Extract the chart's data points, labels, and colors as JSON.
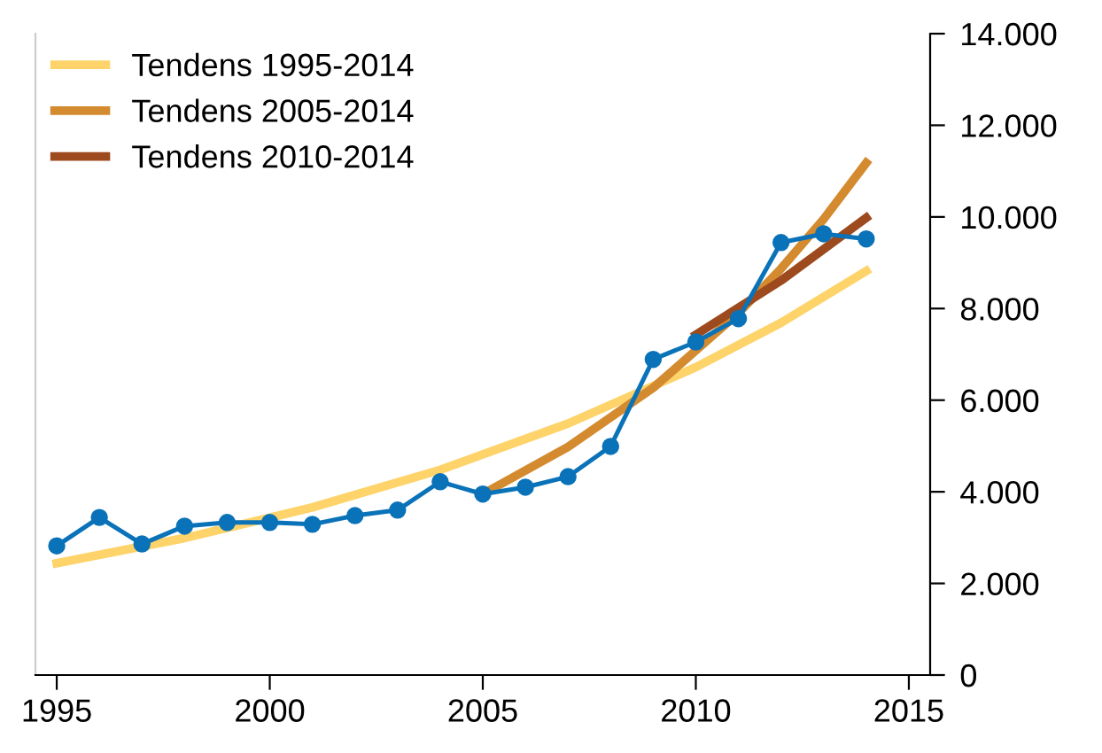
{
  "chart_data": {
    "type": "line",
    "xlim": [
      1994.5,
      2015.5
    ],
    "xticks": [
      1995,
      2000,
      2005,
      2010,
      2015
    ],
    "ylim": [
      0,
      14000
    ],
    "yticks": [
      {
        "value": 0,
        "label": "0"
      },
      {
        "value": 2000,
        "label": "2.000"
      },
      {
        "value": 4000,
        "label": "4.000"
      },
      {
        "value": 6000,
        "label": "6.000"
      },
      {
        "value": 8000,
        "label": "8.000"
      },
      {
        "value": 10000,
        "label": "10.000"
      },
      {
        "value": 12000,
        "label": "12.000"
      },
      {
        "value": 14000,
        "label": "14.000"
      }
    ],
    "legend": "top left",
    "grid": false,
    "series": [
      {
        "name": "Tendens 1995-2014",
        "color": "#fdd36a",
        "x": [
          1995,
          1998,
          2001,
          2004,
          2007,
          2010,
          2012,
          2014
        ],
        "values": [
          2440,
          2990,
          3660,
          4480,
          5490,
          6720,
          7690,
          8820
        ]
      },
      {
        "name": "Tendens 2005-2014",
        "color": "#d48a2e",
        "x": [
          2005,
          2007,
          2009,
          2011,
          2012,
          2013,
          2014
        ],
        "values": [
          3950,
          4980,
          6270,
          7900,
          8870,
          9950,
          11180
        ]
      },
      {
        "name": "Tendens 2010-2014",
        "color": "#9c4a1e",
        "x": [
          2010,
          2012,
          2014
        ],
        "values": [
          7430,
          8610,
          9980
        ]
      },
      {
        "color": "#0a72b8",
        "marker": "circle",
        "x": [
          1995,
          1996,
          1997,
          1998,
          1999,
          2000,
          2001,
          2002,
          2003,
          2004,
          2005,
          2006,
          2007,
          2008,
          2009,
          2010,
          2011,
          2012,
          2013,
          2014
        ],
        "values": [
          2820,
          3440,
          2860,
          3250,
          3330,
          3330,
          3290,
          3480,
          3600,
          4220,
          3950,
          4100,
          4330,
          4990,
          6890,
          7270,
          7780,
          9440,
          9630,
          9520
        ]
      }
    ]
  }
}
